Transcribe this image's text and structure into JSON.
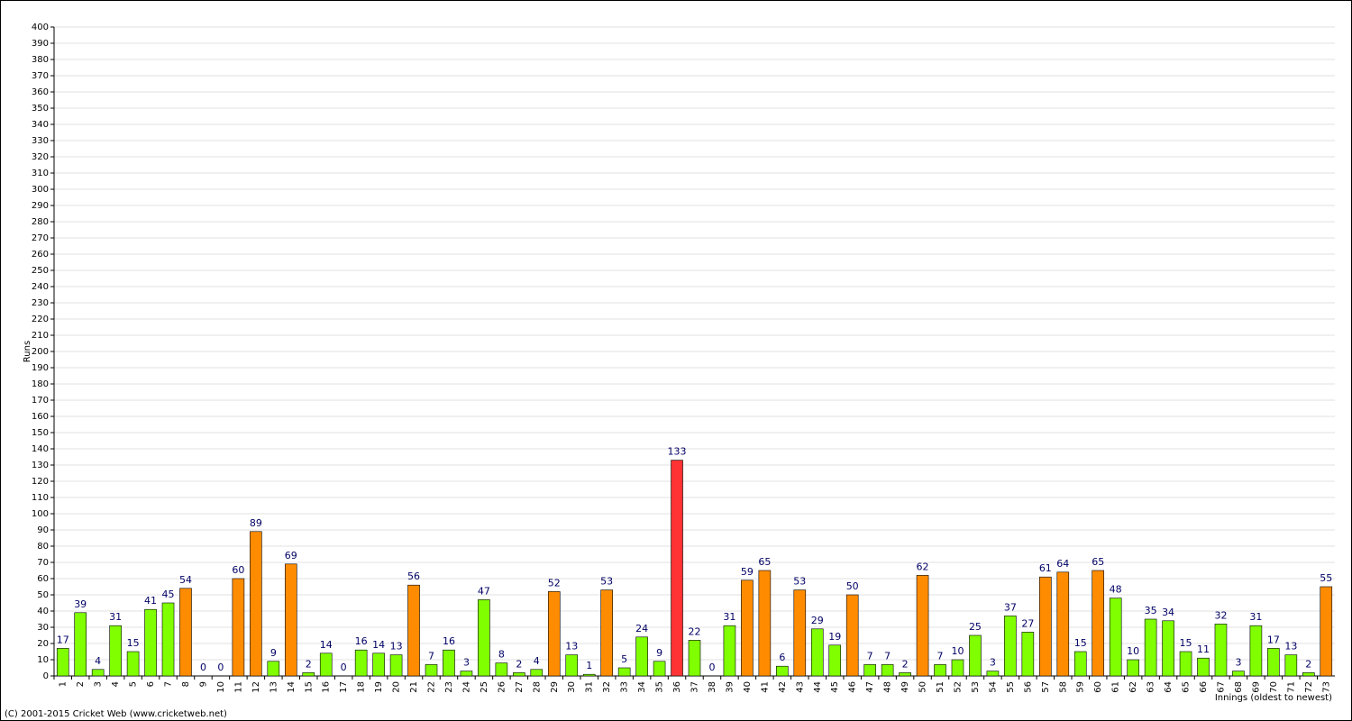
{
  "chart_data": {
    "type": "bar",
    "y_label": "Runs",
    "x_label": "Innings (oldest to newest)",
    "footer": "(C) 2001-2015 Cricket Web (www.cricketweb.net)",
    "categories": [
      "1",
      "2",
      "3",
      "4",
      "5",
      "6",
      "7",
      "8",
      "9",
      "10",
      "11",
      "12",
      "13",
      "14",
      "15",
      "16",
      "17",
      "18",
      "19",
      "20",
      "21",
      "22",
      "23",
      "24",
      "25",
      "26",
      "27",
      "28",
      "29",
      "30",
      "31",
      "32",
      "33",
      "34",
      "35",
      "36",
      "37",
      "38",
      "39",
      "40",
      "41",
      "42",
      "43",
      "44",
      "45",
      "46",
      "47",
      "48",
      "49",
      "50",
      "51",
      "52",
      "53",
      "54",
      "55",
      "56",
      "57",
      "58",
      "59",
      "60",
      "61",
      "62",
      "63",
      "64",
      "65",
      "66",
      "67",
      "68",
      "69",
      "70",
      "71",
      "72",
      "73"
    ],
    "values": [
      17,
      39,
      4,
      31,
      15,
      41,
      45,
      54,
      0,
      0,
      60,
      89,
      9,
      69,
      2,
      14,
      0,
      16,
      14,
      13,
      56,
      7,
      16,
      3,
      47,
      8,
      2,
      4,
      52,
      13,
      1,
      53,
      5,
      24,
      9,
      133,
      22,
      0,
      31,
      59,
      65,
      6,
      53,
      29,
      19,
      50,
      7,
      7,
      2,
      62,
      7,
      10,
      25,
      3,
      37,
      27,
      61,
      64,
      15,
      65,
      48,
      10,
      35,
      34,
      15,
      11,
      32,
      3,
      31,
      17,
      13,
      2,
      55
    ],
    "colors": [
      "#80ff00",
      "#80ff00",
      "#80ff00",
      "#80ff00",
      "#80ff00",
      "#80ff00",
      "#80ff00",
      "#ff8c00",
      "#80ff00",
      "#80ff00",
      "#ff8c00",
      "#ff8c00",
      "#80ff00",
      "#ff8c00",
      "#80ff00",
      "#80ff00",
      "#80ff00",
      "#80ff00",
      "#80ff00",
      "#80ff00",
      "#ff8c00",
      "#80ff00",
      "#80ff00",
      "#80ff00",
      "#80ff00",
      "#80ff00",
      "#80ff00",
      "#80ff00",
      "#ff8c00",
      "#80ff00",
      "#80ff00",
      "#ff8c00",
      "#80ff00",
      "#80ff00",
      "#80ff00",
      "#ff3333",
      "#80ff00",
      "#80ff00",
      "#80ff00",
      "#ff8c00",
      "#ff8c00",
      "#80ff00",
      "#ff8c00",
      "#80ff00",
      "#80ff00",
      "#ff8c00",
      "#80ff00",
      "#80ff00",
      "#80ff00",
      "#ff8c00",
      "#80ff00",
      "#80ff00",
      "#80ff00",
      "#80ff00",
      "#80ff00",
      "#80ff00",
      "#ff8c00",
      "#ff8c00",
      "#80ff00",
      "#ff8c00",
      "#80ff00",
      "#80ff00",
      "#80ff00",
      "#80ff00",
      "#80ff00",
      "#80ff00",
      "#80ff00",
      "#80ff00",
      "#80ff00",
      "#80ff00",
      "#80ff00",
      "#80ff00",
      "#ff8c00"
    ],
    "ylim": [
      0,
      400
    ],
    "yticks": [
      0,
      10,
      20,
      30,
      40,
      50,
      60,
      70,
      80,
      90,
      100,
      110,
      120,
      130,
      140,
      150,
      160,
      170,
      180,
      190,
      200,
      210,
      220,
      230,
      240,
      250,
      260,
      270,
      280,
      290,
      300,
      310,
      320,
      330,
      340,
      350,
      360,
      370,
      380,
      390,
      400
    ],
    "grid": true
  }
}
